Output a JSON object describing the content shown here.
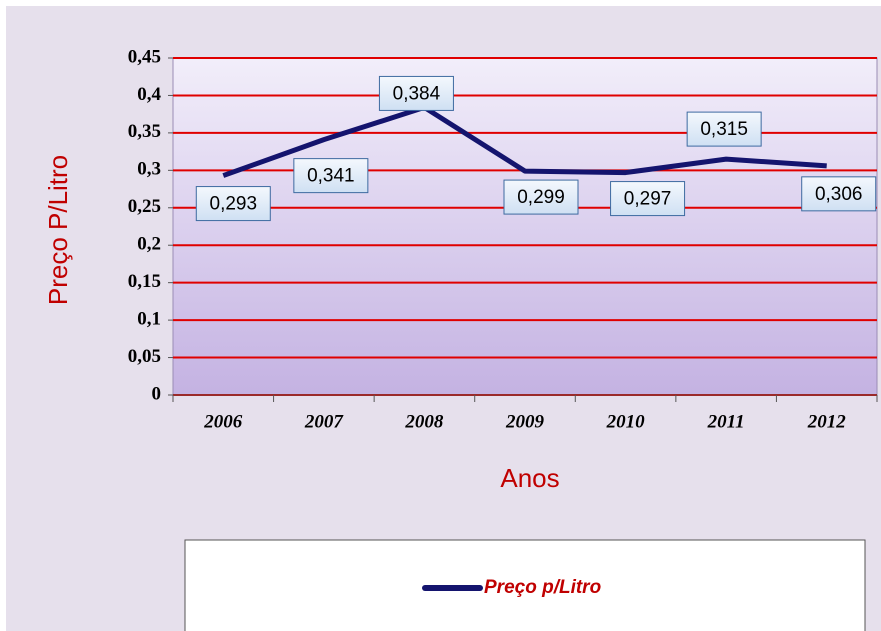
{
  "chart_data": {
    "type": "line",
    "categories": [
      "2006",
      "2007",
      "2008",
      "2009",
      "2010",
      "2011",
      "2012"
    ],
    "series": [
      {
        "name": "Preço p/Litro",
        "color": "#14146e",
        "values": [
          0.293,
          0.341,
          0.384,
          0.299,
          0.297,
          0.315,
          0.306
        ],
        "value_labels": [
          "0,293",
          "0,341",
          "0,384",
          "0,299",
          "0,297",
          "0,315",
          "0,306"
        ]
      }
    ],
    "x_label": "Anos",
    "y_label": "Preço P/Litro",
    "ylim": [
      0,
      0.45
    ],
    "yticks": [
      0,
      {
        "value": 0.05,
        "label": "0,05"
      },
      {
        "value": 0.1,
        "label": "0,1"
      },
      {
        "value": 0.15,
        "label": "0,15"
      },
      {
        "value": 0.2,
        "label": "0,2"
      },
      {
        "value": 0.25,
        "label": "0,25"
      },
      {
        "value": 0.3,
        "label": "0,3"
      },
      {
        "value": 0.35,
        "label": "0,35"
      },
      {
        "value": 0.4,
        "label": "0,4"
      },
      {
        "value": 0.45,
        "label": "0,45"
      }
    ],
    "grid": true,
    "grid_color": "#e00000",
    "legend": "bottom"
  }
}
